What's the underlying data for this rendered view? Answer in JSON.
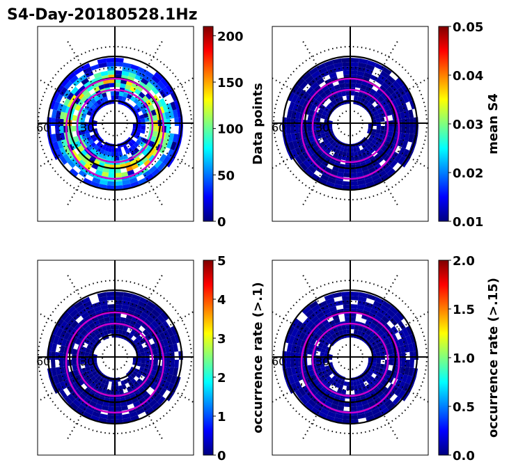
{
  "figure": {
    "title": "S4-Day-20180528.1Hz"
  },
  "chart_data": [
    {
      "type": "heatmap",
      "projection": "polar",
      "title": "",
      "lat_labels": [
        "60",
        "30"
      ],
      "colormap": "jet",
      "colorbar": {
        "label": "Data points",
        "range": [
          0,
          210
        ],
        "ticks": [
          0,
          50,
          100,
          150,
          200
        ],
        "tick_labels": [
          "0",
          "50",
          "100",
          "150",
          "200"
        ]
      },
      "gridlines": {
        "parallels_deg": [
          30,
          60
        ],
        "meridian_step_deg": 30
      },
      "fill_fraction_outer": 0.72,
      "fill_fraction_inner": 0.35,
      "value_range_in_ring": [
        20,
        160
      ]
    },
    {
      "type": "heatmap",
      "projection": "polar",
      "title": "",
      "lat_labels": [
        "60",
        "30"
      ],
      "colormap": "jet",
      "colorbar": {
        "label": "mean S4",
        "range": [
          0.01,
          0.05
        ],
        "ticks": [
          0.01,
          0.02,
          0.03,
          0.04,
          0.05
        ],
        "tick_labels": [
          "0.01",
          "0.02",
          "0.03",
          "0.04",
          "0.05"
        ]
      },
      "gridlines": {
        "parallels_deg": [
          30,
          60
        ],
        "meridian_step_deg": 30
      },
      "value_range_in_ring": [
        0.01,
        0.012
      ]
    },
    {
      "type": "heatmap",
      "projection": "polar",
      "title": "",
      "lat_labels": [
        "60",
        "30"
      ],
      "colormap": "jet",
      "colorbar": {
        "label": "occurrence rate (>.1)",
        "range": [
          0,
          5
        ],
        "ticks": [
          0,
          1,
          2,
          3,
          4,
          5
        ],
        "tick_labels": [
          "0",
          "1",
          "2",
          "3",
          "4",
          "5"
        ]
      },
      "gridlines": {
        "parallels_deg": [
          30,
          60
        ],
        "meridian_step_deg": 30
      },
      "value_range_in_ring": [
        0,
        0.2
      ]
    },
    {
      "type": "heatmap",
      "projection": "polar",
      "title": "",
      "lat_labels": [
        "60",
        "30"
      ],
      "colormap": "jet",
      "colorbar": {
        "label": "occurrence rate (>.15)",
        "range": [
          0,
          2
        ],
        "ticks": [
          0,
          0.5,
          1,
          1.5,
          2
        ],
        "tick_labels": [
          "0.0",
          "0.5",
          "1.0",
          "1.5",
          "2.0"
        ]
      },
      "gridlines": {
        "parallels_deg": [
          30,
          60
        ],
        "meridian_step_deg": 30
      },
      "value_range_in_ring": [
        0,
        0.1
      ]
    }
  ],
  "colors": {
    "axis": "#000000",
    "oval": "#cc00cc",
    "background": "#ffffff"
  }
}
